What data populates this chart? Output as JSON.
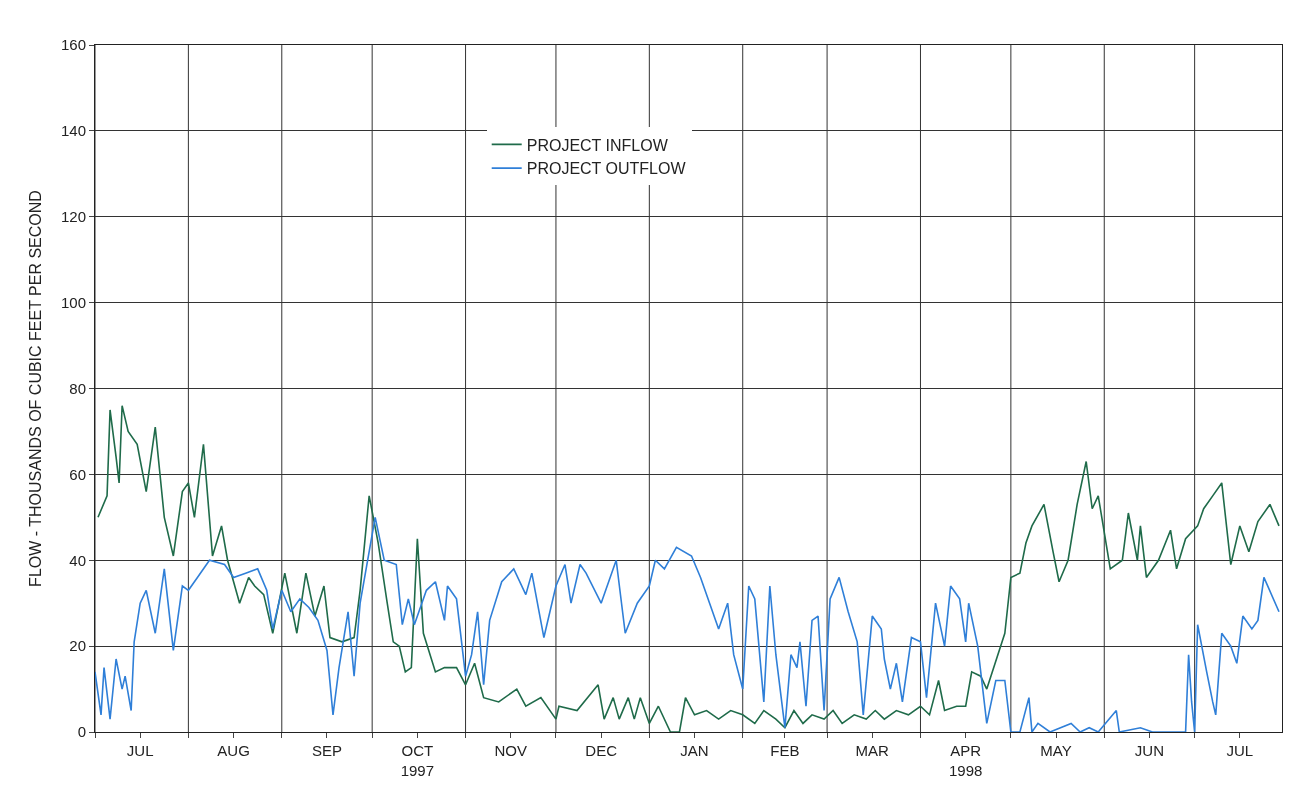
{
  "chart_data": {
    "type": "line",
    "ylabel": "FLOW - THOUSANDS OF CUBIC FEET PER SECOND",
    "xlim": [
      "1997-07-01",
      "1998-07-30"
    ],
    "xticks": [
      {
        "value": "1997-07-01",
        "label": null
      },
      {
        "value": "1997-07-16",
        "label": "JUL"
      },
      {
        "value": "1997-08-01",
        "label": null
      },
      {
        "value": "1997-08-16",
        "label": "AUG"
      },
      {
        "value": "1997-09-01",
        "label": null
      },
      {
        "value": "1997-09-16",
        "label": "SEP"
      },
      {
        "value": "1997-10-01",
        "label": null
      },
      {
        "value": "1997-10-16",
        "label": "OCT\n1997"
      },
      {
        "value": "1997-11-01",
        "label": null
      },
      {
        "value": "1997-11-16",
        "label": "NOV"
      },
      {
        "value": "1997-12-01",
        "label": null
      },
      {
        "value": "1997-12-16",
        "label": "DEC"
      },
      {
        "value": "1998-01-01",
        "label": null
      },
      {
        "value": "1998-01-16",
        "label": "JAN"
      },
      {
        "value": "1998-02-01",
        "label": null
      },
      {
        "value": "1998-02-15",
        "label": "FEB"
      },
      {
        "value": "1998-03-01",
        "label": null
      },
      {
        "value": "1998-03-16",
        "label": "MAR"
      },
      {
        "value": "1998-04-01",
        "label": null
      },
      {
        "value": "1998-04-16",
        "label": "APR\n1998"
      },
      {
        "value": "1998-05-01",
        "label": null
      },
      {
        "value": "1998-05-16",
        "label": "MAY"
      },
      {
        "value": "1998-06-01",
        "label": null
      },
      {
        "value": "1998-06-16",
        "label": "JUN"
      },
      {
        "value": "1998-07-01",
        "label": null
      },
      {
        "value": "1998-07-16",
        "label": "JUL"
      }
    ],
    "ylim": [
      0,
      160
    ],
    "yticks": [
      0,
      20,
      40,
      60,
      80,
      100,
      120,
      140,
      160
    ],
    "grid": true,
    "legend": "top",
    "marker": "none",
    "line_style": "solid",
    "series": [
      {
        "name": "PROJECT INFLOW",
        "color": "#1f6b4a",
        "x": [
          "1997-07-02",
          "1997-07-05",
          "1997-07-06",
          "1997-07-08",
          "1997-07-09",
          "1997-07-10",
          "1997-07-12",
          "1997-07-15",
          "1997-07-18",
          "1997-07-21",
          "1997-07-24",
          "1997-07-27",
          "1997-07-30",
          "1997-08-01",
          "1997-08-03",
          "1997-08-06",
          "1997-08-09",
          "1997-08-12",
          "1997-08-14",
          "1997-08-18",
          "1997-08-21",
          "1997-08-23",
          "1997-08-26",
          "1997-08-29",
          "1997-09-02",
          "1997-09-06",
          "1997-09-09",
          "1997-09-12",
          "1997-09-15",
          "1997-09-17",
          "1997-09-21",
          "1997-09-25",
          "1997-09-27",
          "1997-09-30",
          "1997-10-03",
          "1997-10-06",
          "1997-10-08",
          "1997-10-10",
          "1997-10-12",
          "1997-10-14",
          "1997-10-16",
          "1997-10-18",
          "1997-10-22",
          "1997-10-25",
          "1997-10-29",
          "1997-11-01",
          "1997-11-04",
          "1997-11-07",
          "1997-11-12",
          "1997-11-18",
          "1997-11-21",
          "1997-11-26",
          "1997-12-01",
          "1997-12-02",
          "1997-12-08",
          "1997-12-15",
          "1997-12-17",
          "1997-12-20",
          "1997-12-22",
          "1997-12-25",
          "1997-12-27",
          "1997-12-29",
          "1998-01-01",
          "1998-01-04",
          "1998-01-08",
          "1998-01-11",
          "1998-01-13",
          "1998-01-16",
          "1998-01-20",
          "1998-01-24",
          "1998-01-28",
          "1998-02-01",
          "1998-02-05",
          "1998-02-08",
          "1998-02-12",
          "1998-02-15",
          "1998-02-18",
          "1998-02-21",
          "1998-02-24",
          "1998-02-28",
          "1998-03-03",
          "1998-03-06",
          "1998-03-10",
          "1998-03-14",
          "1998-03-17",
          "1998-03-20",
          "1998-03-24",
          "1998-03-28",
          "1998-04-01",
          "1998-04-04",
          "1998-04-07",
          "1998-04-09",
          "1998-04-13",
          "1998-04-16",
          "1998-04-18",
          "1998-04-21",
          "1998-04-23",
          "1998-04-29",
          "1998-05-01",
          "1998-05-04",
          "1998-05-06",
          "1998-05-08",
          "1998-05-12",
          "1998-05-15",
          "1998-05-17",
          "1998-05-20",
          "1998-05-23",
          "1998-05-26",
          "1998-05-28",
          "1998-05-30",
          "1998-06-03",
          "1998-06-07",
          "1998-06-09",
          "1998-06-12",
          "1998-06-13",
          "1998-06-15",
          "1998-06-19",
          "1998-06-23",
          "1998-06-25",
          "1998-06-28",
          "1998-07-02",
          "1998-07-04",
          "1998-07-07",
          "1998-07-10",
          "1998-07-13",
          "1998-07-16",
          "1998-07-19",
          "1998-07-22",
          "1998-07-26",
          "1998-07-29"
        ],
        "values": [
          50,
          55,
          75,
          64,
          58,
          76,
          70,
          67,
          56,
          71,
          50,
          41,
          56,
          58,
          50,
          67,
          41,
          48,
          40,
          30,
          36,
          34,
          32,
          23,
          37,
          23,
          37,
          27,
          34,
          22,
          21,
          22,
          33,
          55,
          44,
          30,
          21,
          20,
          14,
          15,
          45,
          23,
          14,
          15,
          15,
          11,
          16,
          8,
          7,
          10,
          6,
          8,
          3,
          6,
          5,
          11,
          3,
          8,
          3,
          8,
          3,
          8,
          2,
          6,
          0,
          0,
          8,
          4,
          5,
          3,
          5,
          4,
          2,
          5,
          3,
          1,
          5,
          2,
          4,
          3,
          5,
          2,
          4,
          3,
          5,
          3,
          5,
          4,
          6,
          4,
          12,
          5,
          6,
          6,
          14,
          13,
          10,
          23,
          36,
          37,
          44,
          48,
          53,
          42,
          35,
          40,
          53,
          63,
          52,
          55,
          38,
          40,
          51,
          40,
          48,
          36,
          40,
          47,
          38,
          45,
          48,
          52,
          55,
          58,
          39,
          48,
          42,
          49,
          53,
          48
        ]
      },
      {
        "name": "PROJECT OUTFLOW",
        "color": "#2f7fd8",
        "x": [
          "1997-07-01",
          "1997-07-03",
          "1997-07-04",
          "1997-07-06",
          "1997-07-08",
          "1997-07-10",
          "1997-07-11",
          "1997-07-13",
          "1997-07-14",
          "1997-07-16",
          "1997-07-18",
          "1997-07-21",
          "1997-07-24",
          "1997-07-27",
          "1997-07-30",
          "1997-08-01",
          "1997-08-04",
          "1997-08-08",
          "1997-08-13",
          "1997-08-16",
          "1997-08-20",
          "1997-08-24",
          "1997-08-27",
          "1997-08-29",
          "1997-09-01",
          "1997-09-04",
          "1997-09-07",
          "1997-09-10",
          "1997-09-13",
          "1997-09-16",
          "1997-09-18",
          "1997-09-20",
          "1997-09-23",
          "1997-09-25",
          "1997-09-27",
          "1997-10-02",
          "1997-10-05",
          "1997-10-09",
          "1997-10-11",
          "1997-10-13",
          "1997-10-15",
          "1997-10-19",
          "1997-10-22",
          "1997-10-25",
          "1997-10-26",
          "1997-10-29",
          "1997-11-01",
          "1997-11-03",
          "1997-11-05",
          "1997-11-07",
          "1997-11-09",
          "1997-11-13",
          "1997-11-17",
          "1997-11-21",
          "1997-11-23",
          "1997-11-27",
          "1997-12-01",
          "1997-12-04",
          "1997-12-06",
          "1997-12-09",
          "1997-12-11",
          "1997-12-16",
          "1997-12-21",
          "1997-12-24",
          "1997-12-28",
          "1998-01-01",
          "1998-01-03",
          "1998-01-06",
          "1998-01-10",
          "1998-01-15",
          "1998-01-18",
          "1998-01-21",
          "1998-01-24",
          "1998-01-27",
          "1998-01-29",
          "1998-02-01",
          "1998-02-03",
          "1998-02-05",
          "1998-02-08",
          "1998-02-10",
          "1998-02-12",
          "1998-02-15",
          "1998-02-17",
          "1998-02-19",
          "1998-02-20",
          "1998-02-22",
          "1998-02-24",
          "1998-02-26",
          "1998-02-28",
          "1998-03-02",
          "1998-03-05",
          "1998-03-08",
          "1998-03-11",
          "1998-03-13",
          "1998-03-16",
          "1998-03-19",
          "1998-03-20",
          "1998-03-22",
          "1998-03-24",
          "1998-03-26",
          "1998-03-29",
          "1998-04-01",
          "1998-04-03",
          "1998-04-06",
          "1998-04-09",
          "1998-04-11",
          "1998-04-14",
          "1998-04-16",
          "1998-04-17",
          "1998-04-20",
          "1998-04-23",
          "1998-04-26",
          "1998-04-29",
          "1998-05-01",
          "1998-05-04",
          "1998-05-07",
          "1998-05-08",
          "1998-05-10",
          "1998-05-14",
          "1998-05-21",
          "1998-05-24",
          "1998-05-27",
          "1998-05-30",
          "1998-06-05",
          "1998-06-06",
          "1998-06-13",
          "1998-06-17",
          "1998-06-28",
          "1998-06-29",
          "1998-06-30",
          "1998-07-01",
          "1998-07-02",
          "1998-07-05",
          "1998-07-07",
          "1998-07-08",
          "1998-07-10",
          "1998-07-13",
          "1998-07-15",
          "1998-07-17",
          "1998-07-20",
          "1998-07-22",
          "1998-07-24",
          "1998-07-29"
        ],
        "values": [
          14,
          4,
          15,
          3,
          17,
          10,
          13,
          5,
          21,
          30,
          33,
          23,
          38,
          19,
          34,
          33,
          36,
          40,
          39,
          36,
          37,
          38,
          33,
          24,
          33,
          28,
          31,
          29,
          26,
          19,
          4,
          15,
          28,
          13,
          30,
          50,
          40,
          39,
          25,
          31,
          25,
          33,
          35,
          26,
          34,
          31,
          13,
          18,
          28,
          11,
          26,
          35,
          38,
          32,
          37,
          22,
          34,
          39,
          30,
          39,
          37,
          30,
          40,
          23,
          30,
          34,
          40,
          38,
          43,
          41,
          36,
          30,
          24,
          30,
          18,
          10,
          34,
          31,
          7,
          34,
          18,
          1,
          18,
          15,
          21,
          6,
          26,
          27,
          5,
          31,
          36,
          28,
          21,
          4,
          27,
          24,
          17,
          10,
          16,
          7,
          22,
          21,
          8,
          30,
          20,
          34,
          31,
          21,
          30,
          20,
          2,
          12,
          12,
          0,
          0,
          8,
          0,
          2,
          0,
          2,
          0,
          1,
          0,
          5,
          0,
          1,
          0,
          0,
          18,
          7,
          0,
          25,
          14,
          7,
          4,
          23,
          20,
          16,
          27,
          24,
          26,
          36,
          28
        ]
      }
    ]
  }
}
